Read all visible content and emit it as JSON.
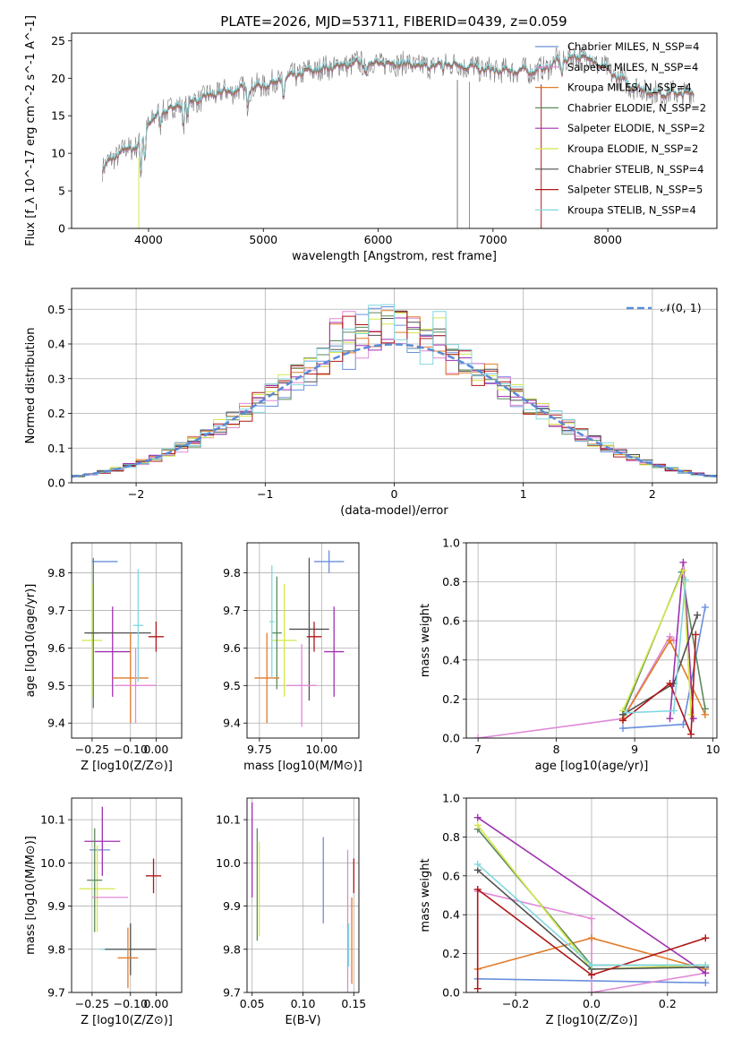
{
  "figure": {
    "title": "PLATE=2026, MJD=53711, FIBERID=0439, z=0.059"
  },
  "chart_data": [
    {
      "id": "spectrum",
      "type": "line",
      "xlabel": "wavelength [Angstrom, rest frame]",
      "ylabel": "Flux [f_λ 10^-17 erg cm^-2 s^-1 A^-1]",
      "xlim": [
        3330,
        8950
      ],
      "ylim": [
        0,
        26
      ],
      "x_ticks": [
        4000,
        5000,
        6000,
        7000,
        8000
      ],
      "y_ticks": [
        0,
        5,
        10,
        15,
        20,
        25
      ],
      "grid": false,
      "legend_position": "top-right",
      "legend": [
        {
          "label": "Chabrier MILES, N_SSP=4",
          "color": "#6a8fdc"
        },
        {
          "label": "Salpeter MILES, N_SSP=4",
          "color": "#e08ad8"
        },
        {
          "label": "Kroupa MILES, N_SSP=4",
          "color": "#e07b2a"
        },
        {
          "label": "Chabrier ELODIE, N_SSP=2",
          "color": "#5c8a5c"
        },
        {
          "label": "Salpeter ELODIE, N_SSP=2",
          "color": "#a030b0"
        },
        {
          "label": "Kroupa ELODIE, N_SSP=2",
          "color": "#d4e84a"
        },
        {
          "label": "Chabrier STELIB, N_SSP=4",
          "color": "#505050"
        },
        {
          "label": "Salpeter STELIB, N_SSP=5",
          "color": "#b01818"
        },
        {
          "label": "Kroupa STELIB, N_SSP=4",
          "color": "#80d8e0"
        }
      ],
      "continuum": {
        "x": [
          3600,
          3700,
          3800,
          3900,
          4000,
          4100,
          4200,
          4300,
          4400,
          4500,
          4600,
          4800,
          5000,
          5200,
          5400,
          5600,
          5800,
          6000,
          6200,
          6400,
          6600,
          6800,
          7000,
          7200,
          7400,
          7600,
          7800,
          8000,
          8200,
          8400,
          8600,
          8750
        ],
        "y": [
          8,
          9.5,
          10.5,
          11,
          14,
          15.5,
          16,
          16.5,
          17,
          17.5,
          18,
          18.5,
          19,
          20,
          21,
          21.5,
          22,
          22,
          22,
          21.5,
          22,
          21.5,
          21,
          21,
          21,
          22.5,
          23,
          21,
          19,
          18,
          18,
          18
        ]
      }
    },
    {
      "id": "residuals",
      "type": "line",
      "xlabel": "(data-model)/error",
      "ylabel": "Normed distribution",
      "xlim": [
        -2.5,
        2.5
      ],
      "ylim": [
        0,
        0.56
      ],
      "x_ticks": [
        -2,
        -1,
        0,
        1,
        2
      ],
      "y_ticks": [
        0.0,
        0.1,
        0.2,
        0.3,
        0.4,
        0.5
      ],
      "grid": true,
      "legend_position": "top-right",
      "legend": [
        {
          "label": "𝒩(0, 1)",
          "color": "#5b8ad6"
        }
      ],
      "series": [
        {
          "name": "N(0,1)",
          "type": "gaussian",
          "mean": 0,
          "sigma": 1
        }
      ]
    },
    {
      "id": "age_vs_Z",
      "type": "scatter",
      "xlabel": "Z [log10(Z/Z⊙)]",
      "ylabel": "age  [log10(age/yr)]",
      "xlim": [
        -0.33,
        0.1
      ],
      "ylim": [
        9.36,
        9.88
      ],
      "x_ticks": [
        -0.25,
        -0.1,
        0.0
      ],
      "y_ticks": [
        9.4,
        9.5,
        9.6,
        9.7,
        9.8
      ],
      "grid": true,
      "points": [
        {
          "x": -0.2,
          "y": 9.83,
          "xerr": 0.05,
          "yerr": 0.0,
          "color": "#6a8fdc"
        },
        {
          "x": -0.25,
          "y": 9.62,
          "xerr": 0.04,
          "yerr": 0.15,
          "color": "#d4e84a"
        },
        {
          "x": -0.245,
          "y": 9.64,
          "xerr": 0.02,
          "yerr": 0.2,
          "color": "#5c8a5c"
        },
        {
          "x": -0.17,
          "y": 9.59,
          "xerr": 0.07,
          "yerr": 0.12,
          "color": "#a030b0"
        },
        {
          "x": -0.15,
          "y": 9.64,
          "xerr": 0.13,
          "yerr": 0.0,
          "color": "#505050"
        },
        {
          "x": -0.1,
          "y": 9.52,
          "xerr": 0.07,
          "yerr": 0.12,
          "color": "#e07b2a"
        },
        {
          "x": -0.08,
          "y": 9.5,
          "xerr": 0.08,
          "yerr": 0.1,
          "color": "#e08ad8"
        },
        {
          "x": -0.07,
          "y": 9.66,
          "xerr": 0.02,
          "yerr": 0.15,
          "color": "#80d8e0"
        },
        {
          "x": -0.0,
          "y": 9.63,
          "xerr": 0.03,
          "yerr": 0.04,
          "color": "#b01818"
        }
      ]
    },
    {
      "id": "age_vs_mass",
      "type": "scatter",
      "xlabel": "mass [log10(M/M⊙)]",
      "ylabel": "",
      "xlim": [
        9.7,
        10.15
      ],
      "ylim": [
        9.36,
        9.88
      ],
      "x_ticks": [
        9.75,
        10.0
      ],
      "y_ticks": [
        9.4,
        9.5,
        9.6,
        9.7,
        9.8
      ],
      "grid": true,
      "points": [
        {
          "x": 10.03,
          "y": 9.83,
          "xerr": 0.06,
          "yerr": 0.03,
          "color": "#6a8fdc"
        },
        {
          "x": 9.85,
          "y": 9.62,
          "xerr": 0.05,
          "yerr": 0.15,
          "color": "#d4e84a"
        },
        {
          "x": 9.82,
          "y": 9.64,
          "xerr": 0.02,
          "yerr": 0.15,
          "color": "#5c8a5c"
        },
        {
          "x": 10.05,
          "y": 9.59,
          "xerr": 0.04,
          "yerr": 0.12,
          "color": "#a030b0"
        },
        {
          "x": 9.95,
          "y": 9.65,
          "xerr": 0.08,
          "yerr": 0.19,
          "color": "#505050"
        },
        {
          "x": 9.78,
          "y": 9.52,
          "xerr": 0.05,
          "yerr": 0.12,
          "color": "#e07b2a"
        },
        {
          "x": 9.92,
          "y": 9.5,
          "xerr": 0.06,
          "yerr": 0.11,
          "color": "#e08ad8"
        },
        {
          "x": 9.8,
          "y": 9.67,
          "xerr": 0.01,
          "yerr": 0.15,
          "color": "#80d8e0"
        },
        {
          "x": 9.97,
          "y": 9.63,
          "xerr": 0.03,
          "yerr": 0.04,
          "color": "#b01818"
        }
      ]
    },
    {
      "id": "massweight_vs_age",
      "type": "line",
      "xlabel": "age  [log10(age/yr)]",
      "ylabel": "mass weight",
      "xlim": [
        6.85,
        10.05
      ],
      "ylim": [
        0.0,
        1.0
      ],
      "x_ticks": [
        7,
        8,
        9,
        10
      ],
      "y_ticks": [
        0.0,
        0.2,
        0.4,
        0.6,
        0.8,
        1.0
      ],
      "grid": true,
      "series": [
        {
          "color": "#6a8fdc",
          "x": [
            8.85,
            9.62,
            9.9
          ],
          "y": [
            0.05,
            0.07,
            0.67
          ]
        },
        {
          "color": "#e08ad8",
          "x": [
            7.0,
            8.85,
            9.45,
            9.5
          ],
          "y": [
            0.0,
            0.1,
            0.52,
            0.5
          ]
        },
        {
          "color": "#e07b2a",
          "x": [
            8.85,
            9.45,
            9.9
          ],
          "y": [
            0.1,
            0.5,
            0.12
          ]
        },
        {
          "color": "#5c8a5c",
          "x": [
            8.85,
            9.6,
            9.9
          ],
          "y": [
            0.12,
            0.85,
            0.15
          ]
        },
        {
          "color": "#a030b0",
          "x": [
            9.45,
            9.62,
            9.75
          ],
          "y": [
            0.1,
            0.9,
            0.1
          ]
        },
        {
          "color": "#d4e84a",
          "x": [
            8.85,
            9.62,
            9.72
          ],
          "y": [
            0.14,
            0.86,
            0.12
          ]
        },
        {
          "color": "#505050",
          "x": [
            8.85,
            9.5,
            9.8
          ],
          "y": [
            0.12,
            0.28,
            0.63
          ]
        },
        {
          "color": "#b01818",
          "x": [
            8.85,
            9.45,
            9.72,
            9.78
          ],
          "y": [
            0.09,
            0.28,
            0.02,
            0.53
          ]
        },
        {
          "color": "#80d8e0",
          "x": [
            8.9,
            9.5,
            9.65
          ],
          "y": [
            0.13,
            0.14,
            0.81
          ]
        }
      ]
    },
    {
      "id": "mass_vs_Z",
      "type": "scatter",
      "xlabel": "Z [log10(Z/Z⊙)]",
      "ylabel": "mass [log10(M/M⊙)]",
      "xlim": [
        -0.33,
        0.1
      ],
      "ylim": [
        9.7,
        10.15
      ],
      "x_ticks": [
        -0.25,
        -0.1,
        0.0
      ],
      "y_ticks": [
        9.7,
        9.8,
        9.9,
        10.0,
        10.1
      ],
      "grid": true,
      "points": [
        {
          "x": -0.22,
          "y": 10.03,
          "xerr": 0.04,
          "yerr": 0.0,
          "color": "#6a8fdc"
        },
        {
          "x": -0.21,
          "y": 10.05,
          "xerr": 0.07,
          "yerr": 0.08,
          "color": "#a030b0"
        },
        {
          "x": -0.23,
          "y": 9.94,
          "xerr": 0.07,
          "yerr": 0.1,
          "color": "#d4e84a"
        },
        {
          "x": -0.24,
          "y": 9.96,
          "xerr": 0.03,
          "yerr": 0.12,
          "color": "#5c8a5c"
        },
        {
          "x": -0.18,
          "y": 9.92,
          "xerr": 0.07,
          "yerr": 0.0,
          "color": "#e08ad8"
        },
        {
          "x": -0.15,
          "y": 9.8,
          "xerr": 0.07,
          "yerr": 0.0,
          "color": "#80d8e0"
        },
        {
          "x": -0.1,
          "y": 9.8,
          "xerr": 0.1,
          "yerr": 0.06,
          "color": "#505050"
        },
        {
          "x": -0.11,
          "y": 9.78,
          "xerr": 0.04,
          "yerr": 0.07,
          "color": "#e07b2a"
        },
        {
          "x": -0.01,
          "y": 9.97,
          "xerr": 0.03,
          "yerr": 0.04,
          "color": "#b01818"
        }
      ]
    },
    {
      "id": "mass_vs_EBV",
      "type": "scatter",
      "xlabel": "E(B-V)",
      "ylabel": "",
      "xlim": [
        0.045,
        0.155
      ],
      "ylim": [
        9.7,
        10.15
      ],
      "x_ticks": [
        0.05,
        0.1,
        0.15
      ],
      "y_ticks": [
        9.7,
        9.8,
        9.9,
        10.0,
        10.1
      ],
      "grid": true,
      "points": [
        {
          "x": 0.05,
          "y": 10.03,
          "yerr": 0.11,
          "color": "#a030b0"
        },
        {
          "x": 0.055,
          "y": 9.95,
          "yerr": 0.13,
          "color": "#5c8a5c"
        },
        {
          "x": 0.057,
          "y": 9.94,
          "yerr": 0.11,
          "color": "#d4e84a"
        },
        {
          "x": 0.12,
          "y": 9.96,
          "yerr": 0.1,
          "color": "#6a8fdc"
        },
        {
          "x": 0.144,
          "y": 9.86,
          "yerr": 0.17,
          "color": "#e08ad8"
        },
        {
          "x": 0.145,
          "y": 9.81,
          "yerr": 0.05,
          "color": "#80d8e0"
        },
        {
          "x": 0.148,
          "y": 9.82,
          "yerr": 0.1,
          "color": "#e07b2a"
        },
        {
          "x": 0.15,
          "y": 9.97,
          "yerr": 0.04,
          "color": "#b01818"
        }
      ]
    },
    {
      "id": "massweight_vs_Z",
      "type": "line",
      "xlabel": "Z [log10(Z/Z⊙)]",
      "ylabel": "mass weight",
      "xlim": [
        -0.33,
        0.33
      ],
      "ylim": [
        0.0,
        1.0
      ],
      "x_ticks": [
        -0.2,
        0.0,
        0.2
      ],
      "y_ticks": [
        0.0,
        0.2,
        0.4,
        0.6,
        0.8,
        1.0
      ],
      "grid": true,
      "series": [
        {
          "color": "#6a8fdc",
          "x": [
            -0.3,
            0.3
          ],
          "y": [
            0.07,
            0.05
          ]
        },
        {
          "color": "#e08ad8",
          "x": [
            -0.3,
            0.0,
            0.0,
            0.3
          ],
          "y": [
            0.52,
            0.38,
            0.0,
            0.1
          ]
        },
        {
          "color": "#e07b2a",
          "x": [
            -0.3,
            0.0,
            0.3
          ],
          "y": [
            0.12,
            0.28,
            0.12
          ]
        },
        {
          "color": "#5c8a5c",
          "x": [
            -0.3,
            0.0,
            0.3
          ],
          "y": [
            0.84,
            0.14,
            0.14
          ]
        },
        {
          "color": "#a030b0",
          "x": [
            -0.3,
            0.3
          ],
          "y": [
            0.9,
            0.1
          ]
        },
        {
          "color": "#d4e84a",
          "x": [
            -0.3,
            0.0,
            0.3
          ],
          "y": [
            0.86,
            0.12,
            0.14
          ]
        },
        {
          "color": "#505050",
          "x": [
            -0.3,
            0.0,
            0.3
          ],
          "y": [
            0.63,
            0.12,
            0.13
          ]
        },
        {
          "color": "#b01818",
          "x": [
            -0.3,
            -0.3,
            0.0,
            0.3
          ],
          "y": [
            0.02,
            0.53,
            0.09,
            0.28
          ]
        },
        {
          "color": "#80d8e0",
          "x": [
            -0.3,
            0.0,
            0.3
          ],
          "y": [
            0.66,
            0.14,
            0.14
          ]
        }
      ]
    }
  ]
}
